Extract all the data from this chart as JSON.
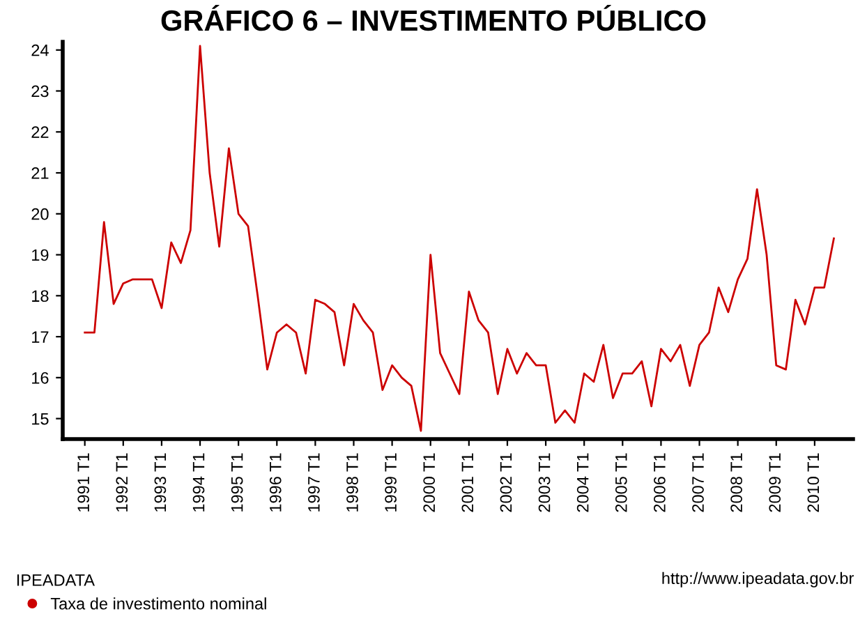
{
  "chart_data": {
    "type": "line",
    "title": "GRÁFICO 6 – INVESTIMENTO PÚBLICO",
    "legend_title": "IPEADATA",
    "annotations": [
      "http://www.ipeadata.gov.br"
    ],
    "categories": [
      "1991 T1",
      null,
      null,
      null,
      "1992 T1",
      null,
      null,
      null,
      "1993 T1",
      null,
      null,
      null,
      "1994 T1",
      null,
      null,
      null,
      "1995 T1",
      null,
      null,
      null,
      "1996 T1",
      null,
      null,
      null,
      "1997 T1",
      null,
      null,
      null,
      "1998 T1",
      null,
      null,
      null,
      "1999 T1",
      null,
      null,
      null,
      "2000 T1",
      null,
      null,
      null,
      "2001 T1",
      null,
      null,
      null,
      "2002 T1",
      null,
      null,
      null,
      "2003 T1",
      null,
      null,
      null,
      "2004 T1",
      null,
      null,
      null,
      "2005 T1",
      null,
      null,
      null,
      "2006 T1",
      null,
      null,
      null,
      "2007 T1",
      null,
      null,
      null,
      "2008 T1",
      null,
      null,
      null,
      "2009 T1",
      null,
      null,
      null,
      "2010 T1",
      null,
      null
    ],
    "series": [
      {
        "name": "Taxa de investimento nominal",
        "color": "#cc0000",
        "values": [
          17.1,
          17.1,
          19.8,
          17.8,
          18.3,
          18.4,
          18.4,
          18.4,
          17.7,
          19.3,
          18.8,
          19.6,
          24.1,
          21.0,
          19.2,
          21.6,
          20.0,
          19.7,
          18.0,
          16.2,
          17.1,
          17.3,
          17.1,
          16.1,
          17.9,
          17.8,
          17.6,
          16.3,
          17.8,
          17.4,
          17.1,
          15.7,
          16.3,
          16.0,
          15.8,
          14.7,
          19.0,
          16.6,
          16.1,
          15.6,
          18.1,
          17.4,
          17.1,
          15.6,
          16.7,
          16.1,
          16.6,
          16.3,
          16.3,
          14.9,
          15.2,
          14.9,
          16.1,
          15.9,
          16.8,
          15.5,
          16.1,
          16.1,
          16.4,
          15.3,
          16.7,
          16.4,
          16.8,
          15.8,
          16.8,
          17.1,
          18.2,
          17.6,
          18.4,
          18.9,
          20.6,
          19.0,
          16.3,
          16.2,
          17.9,
          17.3,
          18.2,
          18.2,
          19.4
        ]
      }
    ],
    "ylim": [
      14.5,
      24.2
    ],
    "yticks": [
      15,
      16,
      17,
      18,
      19,
      20,
      21,
      22,
      23,
      24
    ],
    "grid": false,
    "legend": "bottom left"
  }
}
